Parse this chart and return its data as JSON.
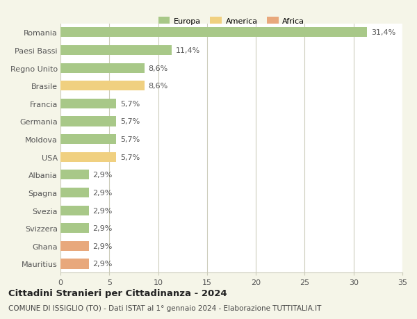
{
  "categories": [
    "Mauritius",
    "Ghana",
    "Svizzera",
    "Svezia",
    "Spagna",
    "Albania",
    "USA",
    "Moldova",
    "Germania",
    "Francia",
    "Brasile",
    "Regno Unito",
    "Paesi Bassi",
    "Romania"
  ],
  "values": [
    2.9,
    2.9,
    2.9,
    2.9,
    2.9,
    2.9,
    5.7,
    5.7,
    5.7,
    5.7,
    8.6,
    8.6,
    11.4,
    31.4
  ],
  "labels": [
    "2,9%",
    "2,9%",
    "2,9%",
    "2,9%",
    "2,9%",
    "2,9%",
    "5,7%",
    "5,7%",
    "5,7%",
    "5,7%",
    "8,6%",
    "8,6%",
    "11,4%",
    "31,4%"
  ],
  "colors": [
    "#e8a87c",
    "#e8a87c",
    "#a8c888",
    "#a8c888",
    "#a8c888",
    "#a8c888",
    "#f0d080",
    "#a8c888",
    "#a8c888",
    "#a8c888",
    "#f0d080",
    "#a8c888",
    "#a8c888",
    "#a8c888"
  ],
  "continent": [
    "Africa",
    "Africa",
    "Europa",
    "Europa",
    "Europa",
    "Europa",
    "America",
    "Europa",
    "Europa",
    "Europa",
    "America",
    "Europa",
    "Europa",
    "Europa"
  ],
  "legend_labels": [
    "Europa",
    "America",
    "Africa"
  ],
  "legend_colors": [
    "#a8c888",
    "#f0d080",
    "#e8a87c"
  ],
  "title_bold": "Cittadini Stranieri per Cittadinanza - 2024",
  "subtitle": "COMUNE DI ISSIGLIO (TO) - Dati ISTAT al 1° gennaio 2024 - Elaborazione TUTTITALIA.IT",
  "xlim": [
    0,
    35
  ],
  "xticks": [
    0,
    5,
    10,
    15,
    20,
    25,
    30,
    35
  ],
  "background_color": "#f5f5e8",
  "bar_area_color": "#ffffff",
  "grid_color": "#ccccbb",
  "text_color": "#555555",
  "label_fontsize": 8.0,
  "tick_fontsize": 8.0,
  "title_fontsize": 9.5,
  "subtitle_fontsize": 7.5,
  "bar_height": 0.55
}
